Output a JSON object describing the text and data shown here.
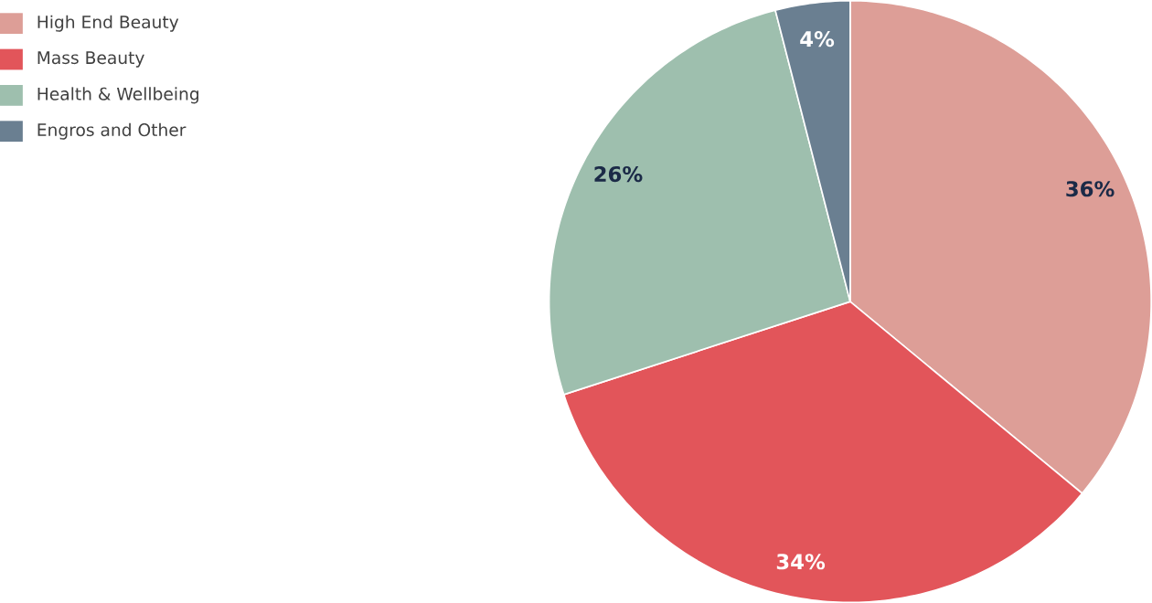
{
  "chart_data": {
    "type": "pie",
    "categories": [
      "High End Beauty",
      "Mass Beauty",
      "Health & Wellbeing",
      "Engros and Other"
    ],
    "values": [
      36,
      34,
      26,
      4
    ],
    "value_labels": [
      "36%",
      "34%",
      "26%",
      "4%"
    ],
    "colors": [
      "#dd9e97",
      "#e2555a",
      "#9ebfae",
      "#6a7f91"
    ],
    "legend": "top left"
  }
}
